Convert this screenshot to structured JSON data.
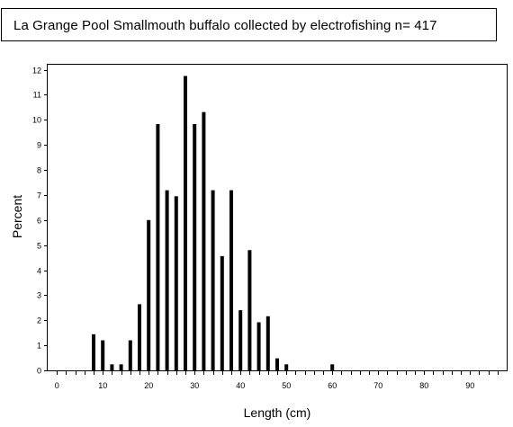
{
  "chart_data": {
    "type": "bar",
    "title": "La Grange Pool Smallmouth buffalo collected by electrofishing n= 417",
    "xlabel": "Length (cm)",
    "ylabel": "Percent",
    "xlim": [
      -2,
      98
    ],
    "ylim": [
      0,
      12.2
    ],
    "x_ticks": [
      0,
      10,
      20,
      30,
      40,
      50,
      60,
      70,
      80,
      90
    ],
    "y_ticks": [
      0,
      1,
      2,
      3,
      4,
      5,
      6,
      7,
      8,
      9,
      10,
      11,
      12
    ],
    "grid": false,
    "bars": [
      {
        "x": 8,
        "y": 1.44
      },
      {
        "x": 10,
        "y": 1.2
      },
      {
        "x": 12,
        "y": 0.24
      },
      {
        "x": 14,
        "y": 0.24
      },
      {
        "x": 16,
        "y": 1.2
      },
      {
        "x": 18,
        "y": 2.64
      },
      {
        "x": 20,
        "y": 6.0
      },
      {
        "x": 22,
        "y": 9.83
      },
      {
        "x": 24,
        "y": 7.19
      },
      {
        "x": 26,
        "y": 6.95
      },
      {
        "x": 28,
        "y": 11.75
      },
      {
        "x": 30,
        "y": 9.83
      },
      {
        "x": 32,
        "y": 10.31
      },
      {
        "x": 34,
        "y": 7.19
      },
      {
        "x": 36,
        "y": 4.56
      },
      {
        "x": 38,
        "y": 7.19
      },
      {
        "x": 40,
        "y": 2.4
      },
      {
        "x": 42,
        "y": 4.8
      },
      {
        "x": 44,
        "y": 1.92
      },
      {
        "x": 46,
        "y": 2.16
      },
      {
        "x": 48,
        "y": 0.48
      },
      {
        "x": 50,
        "y": 0.24
      },
      {
        "x": 60,
        "y": 0.24
      }
    ]
  }
}
